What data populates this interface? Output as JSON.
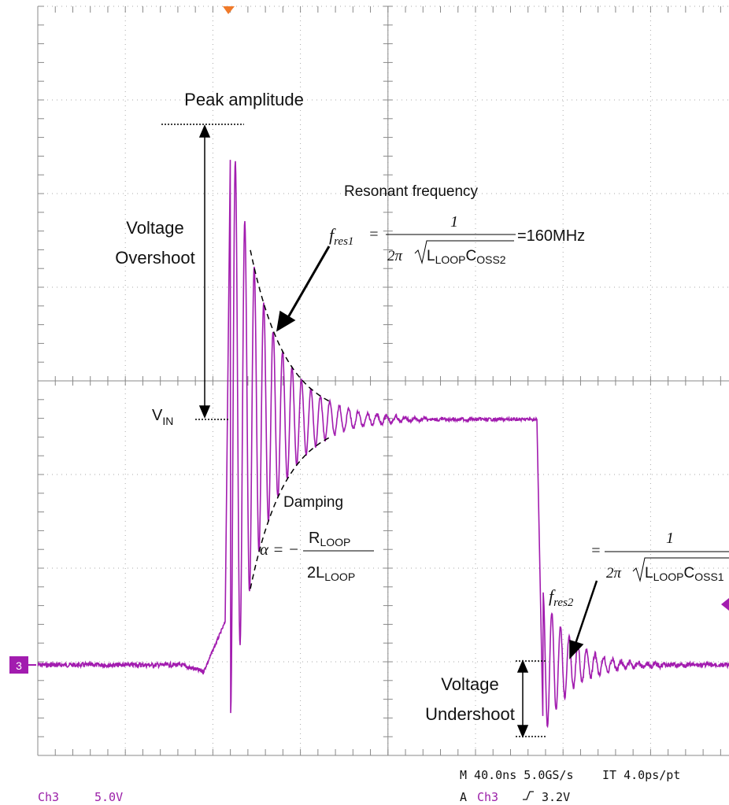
{
  "annotations": {
    "peak_amplitude": "Peak amplitude",
    "resonant_frequency": "Resonant frequency",
    "overshoot": [
      "Voltage",
      "Overshoot"
    ],
    "vin": {
      "main": "V",
      "sub": "IN"
    },
    "fres1": {
      "symbol": "f",
      "sub": "res1",
      "equals": "=",
      "numerator": "1",
      "two_pi": "2π",
      "l": "L",
      "l_sub": "LOOP",
      "c": "C",
      "c_sub": "OSS2",
      "result": "=160MHz"
    },
    "damping": "Damping",
    "alpha": {
      "lhs": "α = −",
      "r": "R",
      "r_sub": "LOOP",
      "den": "2L",
      "den_sub": "LOOP"
    },
    "fres2": {
      "symbol": "f",
      "sub": "res2",
      "equals": "=",
      "numerator": "1",
      "two_pi": "2π",
      "l": "L",
      "l_sub": "LOOP",
      "c": "C",
      "c_sub": "OSS1"
    },
    "undershoot": [
      "Voltage",
      "Undershoot"
    ]
  },
  "scope": {
    "channel_marker": "3",
    "timebase": "M 40.0ns 5.0GS/s",
    "interp": "IT 4.0ps/pt",
    "ch_label": "Ch3",
    "ch_scale": "5.0V",
    "trigger_mode": "A",
    "trigger_source": "Ch3",
    "trigger_level": "3.2V"
  }
}
